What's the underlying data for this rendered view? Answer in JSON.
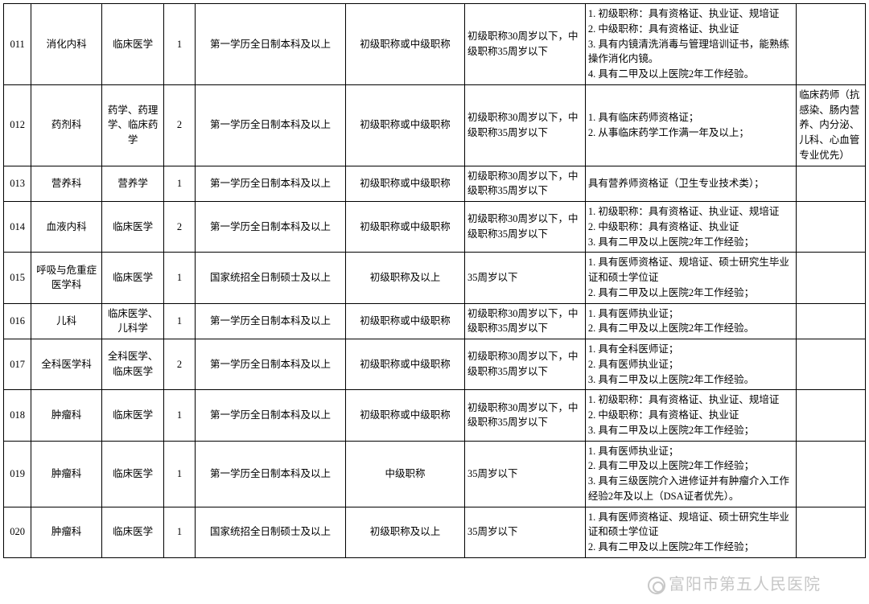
{
  "watermark": "富阳市第五人民医院",
  "col_widths_pct": [
    3.2,
    8.2,
    7.2,
    3.6,
    17.5,
    13.8,
    14.0,
    24.5,
    8.0
  ],
  "rows": [
    {
      "c0": "011",
      "c1": "消化内科",
      "c2": "临床医学",
      "c3": "1",
      "c4": "第一学历全日制本科及以上",
      "c5": "初级职称或中级职称",
      "c6": "初级职称30周岁以下，中级职称35周岁以下",
      "c7": "1. 初级职称：具有资格证、执业证、规培证\n2. 中级职称：具有资格证、执业证\n3. 具有内镜清洗消毒与管理培训证书，能熟练操作消化内镜。\n4. 具有二甲及以上医院2年工作经验。",
      "c8": ""
    },
    {
      "c0": "012",
      "c1": "药剂科",
      "c2": "药学、药理学、临床药学",
      "c3": "2",
      "c4": "第一学历全日制本科及以上",
      "c5": "初级职称或中级职称",
      "c6": "初级职称30周岁以下，中级职称35周岁以下",
      "c7": "1. 具有临床药师资格证；\n2. 从事临床药学工作满一年及以上；",
      "c8": "临床药师（抗感染、肠内营养、内分泌、儿科、心血管专业优先）"
    },
    {
      "c0": "013",
      "c1": "营养科",
      "c2": "营养学",
      "c3": "1",
      "c4": "第一学历全日制本科及以上",
      "c5": "初级职称或中级职称",
      "c6": "初级职称30周岁以下，中级职称35周岁以下",
      "c7": "具有营养师资格证（卫生专业技术类）；",
      "c8": ""
    },
    {
      "c0": "014",
      "c1": "血液内科",
      "c2": "临床医学",
      "c3": "2",
      "c4": "第一学历全日制本科及以上",
      "c5": "初级职称或中级职称",
      "c6": "初级职称30周岁以下，中级职称35周岁以下",
      "c7": "1. 初级职称：具有资格证、执业证、规培证\n2. 中级职称：具有资格证、执业证\n3. 具有二甲及以上医院2年工作经验；",
      "c8": ""
    },
    {
      "c0": "015",
      "c1": "呼吸与危重症医学科",
      "c2": "临床医学",
      "c3": "1",
      "c4": "国家统招全日制硕士及以上",
      "c5": "初级职称及以上",
      "c6": "35周岁以下",
      "c7": "1. 具有医师资格证、规培证、硕士研究生毕业证和硕士学位证\n2. 具有二甲及以上医院2年工作经验；",
      "c8": ""
    },
    {
      "c0": "016",
      "c1": "儿科",
      "c2": "临床医学、儿科学",
      "c3": "1",
      "c4": "第一学历全日制本科及以上",
      "c5": "初级职称或中级职称",
      "c6": "初级职称30周岁以下，中级职称35周岁以下",
      "c7": "1. 具有医师执业证；\n2. 具有二甲及以上医院2年工作经验。",
      "c8": ""
    },
    {
      "c0": "017",
      "c1": "全科医学科",
      "c2": "全科医学、临床医学",
      "c3": "2",
      "c4": "第一学历全日制本科及以上",
      "c5": "初级职称或中级职称",
      "c6": "初级职称30周岁以下，中级职称35周岁以下",
      "c7": "1. 具有全科医师证；\n2. 具有医师执业证；\n3. 具有二甲及以上医院2年工作经验。",
      "c8": ""
    },
    {
      "c0": "018",
      "c1": "肿瘤科",
      "c2": "临床医学",
      "c3": "1",
      "c4": "第一学历全日制本科及以上",
      "c5": "初级职称或中级职称",
      "c6": "初级职称30周岁以下，中级职称35周岁以下",
      "c7": "1. 初级职称：具有资格证、执业证、规培证\n2. 中级职称：具有资格证、执业证\n3. 具有二甲及以上医院2年工作经验；",
      "c8": ""
    },
    {
      "c0": "019",
      "c1": "肿瘤科",
      "c2": "临床医学",
      "c3": "1",
      "c4": "第一学历全日制本科及以上",
      "c5": "中级职称",
      "c6": "35周岁以下",
      "c7": "1. 具有医师执业证；\n2. 具有二甲及以上医院2年工作经验；\n3. 具有三级医院介入进修证并有肿瘤介入工作经验2年及以上（DSA证者优先）。",
      "c8": ""
    },
    {
      "c0": "020",
      "c1": "肿瘤科",
      "c2": "临床医学",
      "c3": "1",
      "c4": "国家统招全日制硕士及以上",
      "c5": "初级职称及以上",
      "c6": "35周岁以下",
      "c7": "1. 具有医师资格证、规培证、硕士研究生毕业证和硕士学位证\n2. 具有二甲及以上医院2年工作经验；",
      "c8": ""
    }
  ]
}
